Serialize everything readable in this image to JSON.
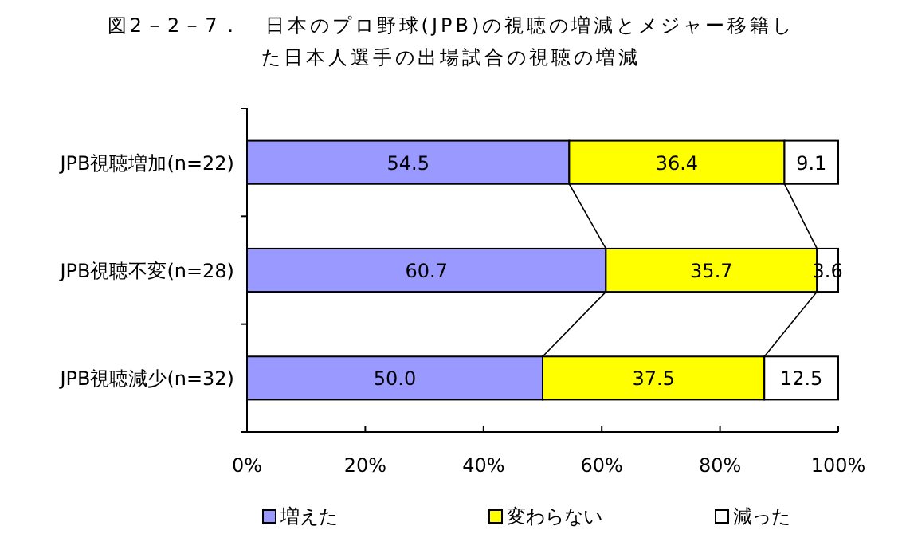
{
  "chart_data": {
    "type": "bar",
    "orientation": "horizontal",
    "stacked": true,
    "title": "図2－2－7．　日本のプロ野球(JPB)の視聴の増減とメジャー移籍した日本人選手の出場試合の視聴の増減",
    "categories": [
      "JPB視聴増加(n=22)",
      "JPB視聴不変(n=28)",
      "JPB視聴減少(n=32)"
    ],
    "series": [
      {
        "name": "増えた",
        "color": "#9999ff",
        "values": [
          54.5,
          60.7,
          50.0
        ],
        "value_labels": [
          "54.5",
          "60.7",
          "50.0"
        ]
      },
      {
        "name": "変わらない",
        "color": "#ffff00",
        "values": [
          36.4,
          35.7,
          37.5
        ],
        "value_labels": [
          "36.4",
          "35.7",
          "37.5"
        ]
      },
      {
        "name": "減った",
        "color": "#ffffff",
        "values": [
          9.1,
          3.6,
          12.5
        ],
        "value_labels": [
          "9.1",
          "3.6",
          "12.5"
        ]
      }
    ],
    "xlim": [
      0,
      100
    ],
    "xticks": [
      {
        "value": 0,
        "label": "0%"
      },
      {
        "value": 20,
        "label": "20%"
      },
      {
        "value": 40,
        "label": "40%"
      },
      {
        "value": 60,
        "label": "60%"
      },
      {
        "value": 80,
        "label": "80%"
      },
      {
        "value": 100,
        "label": "100%"
      }
    ],
    "legend": "bottom"
  }
}
